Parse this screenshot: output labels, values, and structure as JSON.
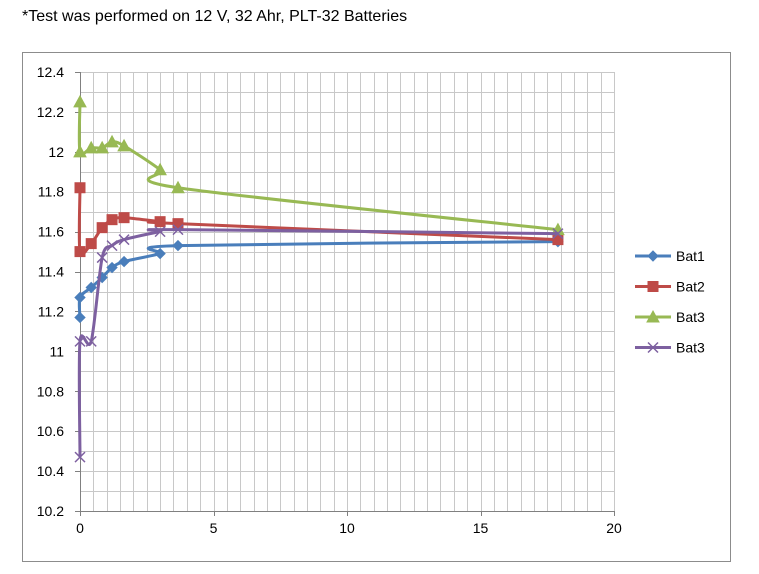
{
  "caption": "*Test was performed on 12 V, 32 Ahr, PLT-32 Batteries",
  "chart_data": {
    "type": "line",
    "title": "",
    "xlabel": "",
    "ylabel": "",
    "xlim": [
      0,
      20
    ],
    "ylim": [
      10.2,
      12.4
    ],
    "x_ticks": [
      "0",
      "5",
      "10",
      "15",
      "20"
    ],
    "y_ticks": [
      "10.2",
      "10.4",
      "10.6",
      "10.8",
      "11",
      "11.2",
      "11.4",
      "11.6",
      "11.8",
      "12",
      "12.2",
      "12.4"
    ],
    "x_minor_step": 0.5,
    "y_minor_step": 0.1,
    "grid": true,
    "legend_position": "right",
    "series": [
      {
        "name": "Bat1",
        "color": "#4a7ebb",
        "marker": "diamond",
        "x": [
          0,
          0,
          0.42,
          0.83,
          1.2,
          1.65,
          3.0,
          3.67,
          17.9
        ],
        "y": [
          11.17,
          11.27,
          11.32,
          11.37,
          11.42,
          11.45,
          11.49,
          11.53,
          11.55
        ]
      },
      {
        "name": "Bat2",
        "color": "#be4b48",
        "marker": "square",
        "x": [
          0,
          0,
          0.42,
          0.83,
          1.2,
          1.65,
          3.0,
          3.67,
          17.9
        ],
        "y": [
          11.82,
          11.5,
          11.54,
          11.62,
          11.66,
          11.67,
          11.65,
          11.64,
          11.56
        ]
      },
      {
        "name": "Bat3",
        "color": "#98b954",
        "marker": "triangle",
        "x": [
          0,
          0,
          0.42,
          0.83,
          1.2,
          1.65,
          3.0,
          3.67,
          17.9
        ],
        "y": [
          12.25,
          12.0,
          12.02,
          12.02,
          12.05,
          12.03,
          11.91,
          11.82,
          11.61
        ]
      },
      {
        "name": "Bat3",
        "color": "#7d60a0",
        "marker": "x",
        "x": [
          0,
          0,
          0.42,
          0.83,
          1.2,
          1.65,
          3.0,
          3.67,
          17.9
        ],
        "y": [
          10.47,
          11.05,
          11.05,
          11.47,
          11.53,
          11.56,
          11.6,
          11.61,
          11.59
        ]
      }
    ]
  }
}
